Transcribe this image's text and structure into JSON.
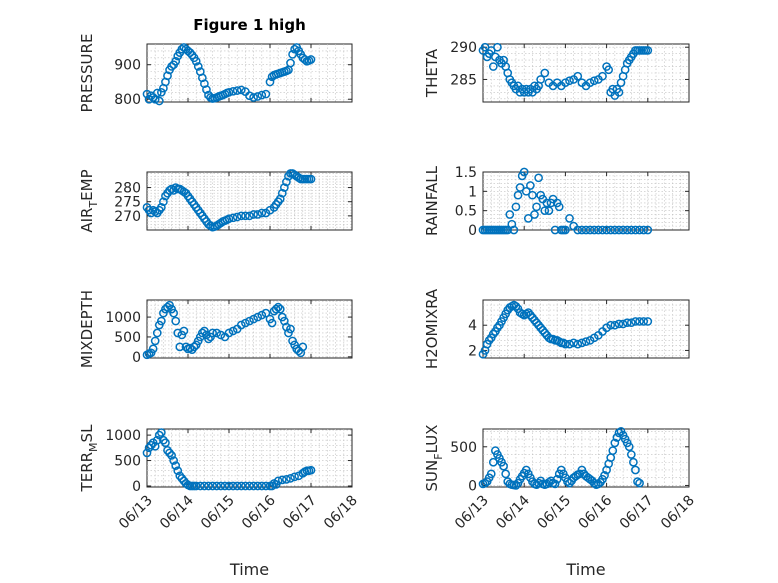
{
  "figure": {
    "title": "Figure 1 high"
  },
  "chart_data": [
    {
      "id": "pressure",
      "type": "scatter",
      "title": "Figure 1 high",
      "ylabel": "PRESSURE",
      "xlabel": "",
      "ylim": [
        792,
        960
      ],
      "yticks": [
        800,
        900
      ],
      "xlim": [
        0,
        5
      ],
      "xticks": [
        0,
        1,
        2,
        3,
        4,
        5
      ],
      "xtick_labels": [],
      "color": "#0072bd",
      "x": [
        0,
        0.05,
        0.1,
        0.15,
        0.2,
        0.25,
        0.3,
        0.35,
        0.4,
        0.45,
        0.5,
        0.55,
        0.6,
        0.65,
        0.7,
        0.75,
        0.8,
        0.85,
        0.9,
        0.95,
        1.0,
        1.05,
        1.1,
        1.15,
        1.2,
        1.25,
        1.3,
        1.35,
        1.4,
        1.45,
        1.5,
        1.55,
        1.6,
        1.65,
        1.7,
        1.75,
        1.8,
        1.85,
        1.9,
        1.95,
        2.0,
        2.1,
        2.2,
        2.3,
        2.4,
        2.5,
        2.6,
        2.7,
        2.8,
        2.9,
        3.0,
        3.05,
        3.1,
        3.15,
        3.2,
        3.25,
        3.3,
        3.35,
        3.4,
        3.45,
        3.5,
        3.55,
        3.6,
        3.65,
        3.7,
        3.75,
        3.8,
        3.85,
        3.9,
        3.95,
        4.0
      ],
      "y": [
        815,
        800,
        810,
        805,
        800,
        818,
        795,
        820,
        832,
        850,
        868,
        885,
        895,
        900,
        910,
        925,
        935,
        945,
        950,
        945,
        940,
        935,
        928,
        920,
        910,
        895,
        880,
        862,
        845,
        828,
        812,
        805,
        802,
        803,
        805,
        808,
        810,
        812,
        815,
        818,
        820,
        823,
        825,
        827,
        822,
        810,
        805,
        808,
        812,
        815,
        850,
        865,
        870,
        872,
        874,
        876,
        878,
        880,
        882,
        885,
        905,
        930,
        945,
        950,
        940,
        930,
        920,
        915,
        910,
        912,
        915
      ]
    },
    {
      "id": "theta",
      "type": "scatter",
      "title": "",
      "ylabel": "THETA",
      "xlabel": "",
      "ylim": [
        281.5,
        290.5
      ],
      "yticks": [
        285,
        290
      ],
      "xlim": [
        0,
        5
      ],
      "xticks": [
        0,
        1,
        2,
        3,
        4,
        5
      ],
      "xtick_labels": [],
      "color": "#0072bd",
      "x": [
        0,
        0.05,
        0.1,
        0.15,
        0.2,
        0.25,
        0.3,
        0.35,
        0.4,
        0.45,
        0.5,
        0.55,
        0.6,
        0.65,
        0.7,
        0.75,
        0.8,
        0.85,
        0.9,
        0.95,
        1.0,
        1.05,
        1.1,
        1.15,
        1.2,
        1.25,
        1.3,
        1.35,
        1.4,
        1.5,
        1.6,
        1.7,
        1.8,
        1.9,
        2.0,
        2.1,
        2.2,
        2.3,
        2.4,
        2.5,
        2.6,
        2.7,
        2.8,
        2.9,
        3.0,
        3.05,
        3.1,
        3.15,
        3.2,
        3.25,
        3.3,
        3.35,
        3.4,
        3.45,
        3.5,
        3.55,
        3.6,
        3.65,
        3.7,
        3.75,
        3.8,
        3.85,
        3.9,
        3.95,
        4.0
      ],
      "y": [
        289.5,
        290,
        288.5,
        289,
        289.5,
        287,
        288.5,
        290,
        288,
        287.5,
        288,
        287,
        286,
        285,
        284.5,
        284,
        283.5,
        284,
        283,
        283.5,
        283,
        283.5,
        283,
        283.5,
        283,
        284,
        283.5,
        284,
        285,
        286,
        284.5,
        284,
        284.5,
        284,
        284.5,
        284.8,
        285,
        285.5,
        284.5,
        284,
        284.5,
        284.8,
        285,
        285.5,
        287,
        286.5,
        283,
        283.5,
        282.5,
        283.5,
        283,
        284.5,
        285.5,
        286.5,
        287.5,
        288,
        288.5,
        289,
        289.5,
        289.5,
        289.5,
        289.5,
        289.5,
        289.5,
        289.5
      ]
    },
    {
      "id": "air_temp",
      "type": "scatter",
      "title": "",
      "ylabel": "AIR_TEMP",
      "xlabel": "",
      "ylim": [
        265,
        285.5
      ],
      "yticks": [
        270,
        275,
        280
      ],
      "xlim": [
        0,
        5
      ],
      "xticks": [
        0,
        1,
        2,
        3,
        4,
        5
      ],
      "xtick_labels": [],
      "color": "#0072bd",
      "x": [
        0,
        0.05,
        0.1,
        0.15,
        0.2,
        0.25,
        0.3,
        0.35,
        0.4,
        0.45,
        0.5,
        0.55,
        0.6,
        0.65,
        0.7,
        0.75,
        0.8,
        0.85,
        0.9,
        0.95,
        1.0,
        1.05,
        1.1,
        1.15,
        1.2,
        1.25,
        1.3,
        1.35,
        1.4,
        1.45,
        1.5,
        1.55,
        1.6,
        1.65,
        1.7,
        1.75,
        1.8,
        1.85,
        1.9,
        1.95,
        2.0,
        2.1,
        2.2,
        2.3,
        2.4,
        2.5,
        2.6,
        2.7,
        2.8,
        2.9,
        3.0,
        3.1,
        3.15,
        3.2,
        3.25,
        3.3,
        3.35,
        3.4,
        3.45,
        3.5,
        3.55,
        3.6,
        3.65,
        3.7,
        3.75,
        3.8,
        3.85,
        3.9,
        3.95,
        4.0
      ],
      "y": [
        273,
        272,
        271,
        272,
        271.5,
        271,
        272,
        273,
        275,
        277,
        278,
        279,
        279.5,
        279,
        280,
        279.5,
        279.5,
        279,
        278.5,
        278,
        277,
        276,
        275,
        274,
        273,
        272,
        271,
        270,
        269,
        268,
        267,
        266.5,
        266,
        266.2,
        266.5,
        267,
        267.5,
        268,
        268.3,
        268.6,
        269,
        269.3,
        269.6,
        270,
        270,
        270,
        270.5,
        270.5,
        271,
        271,
        272,
        273,
        274,
        275,
        276,
        278,
        280,
        282,
        284,
        285,
        285,
        284.5,
        284,
        283.5,
        283,
        283,
        283,
        283,
        283,
        283
      ]
    },
    {
      "id": "rainfall",
      "type": "scatter",
      "title": "",
      "ylabel": "RAINFALL",
      "xlabel": "",
      "ylim": [
        0,
        1.5
      ],
      "yticks": [
        0,
        0.5,
        1,
        1.5
      ],
      "xlim": [
        0,
        5
      ],
      "xticks": [
        0,
        1,
        2,
        3,
        4,
        5
      ],
      "xtick_labels": [],
      "color": "#0072bd",
      "x": [
        0,
        0.05,
        0.1,
        0.15,
        0.2,
        0.25,
        0.3,
        0.35,
        0.4,
        0.45,
        0.5,
        0.55,
        0.6,
        0.65,
        0.7,
        0.75,
        0.8,
        0.85,
        0.9,
        0.95,
        1.0,
        1.05,
        1.1,
        1.15,
        1.2,
        1.25,
        1.3,
        1.35,
        1.4,
        1.45,
        1.5,
        1.55,
        1.6,
        1.65,
        1.7,
        1.75,
        1.8,
        1.85,
        1.9,
        1.95,
        2.0,
        2.1,
        2.2,
        2.3,
        2.4,
        2.5,
        2.6,
        2.7,
        2.8,
        2.9,
        3.0,
        3.1,
        3.2,
        3.3,
        3.4,
        3.5,
        3.6,
        3.7,
        3.8,
        3.9,
        4.0
      ],
      "y": [
        0,
        0,
        0,
        0,
        0,
        0,
        0,
        0,
        0,
        0,
        0,
        0,
        0,
        0.4,
        0.15,
        0,
        0.6,
        0.9,
        1.1,
        1.4,
        1.5,
        1.0,
        0.3,
        1.15,
        0.9,
        0.4,
        0.6,
        1.35,
        0.9,
        0.8,
        0.5,
        0.7,
        0.5,
        0.7,
        0.8,
        0,
        0.7,
        0.6,
        0,
        0,
        0,
        0.3,
        0.1,
        0,
        0,
        0,
        0,
        0,
        0,
        0,
        0,
        0,
        0,
        0,
        0,
        0,
        0,
        0,
        0,
        0,
        0
      ]
    },
    {
      "id": "mixdepth",
      "type": "scatter",
      "title": "",
      "ylabel": "MIXDEPTH",
      "xlabel": "",
      "ylim": [
        -30,
        1430
      ],
      "yticks": [
        0,
        500,
        1000
      ],
      "xlim": [
        0,
        5
      ],
      "xticks": [
        0,
        1,
        2,
        3,
        4,
        5
      ],
      "xtick_labels": [],
      "color": "#0072bd",
      "x": [
        0,
        0.05,
        0.1,
        0.15,
        0.2,
        0.25,
        0.3,
        0.35,
        0.4,
        0.45,
        0.5,
        0.55,
        0.6,
        0.65,
        0.7,
        0.75,
        0.8,
        0.85,
        0.9,
        0.95,
        1.0,
        1.05,
        1.1,
        1.15,
        1.2,
        1.25,
        1.3,
        1.35,
        1.4,
        1.45,
        1.5,
        1.55,
        1.6,
        1.7,
        1.8,
        1.9,
        2.0,
        2.1,
        2.2,
        2.3,
        2.4,
        2.5,
        2.6,
        2.7,
        2.8,
        2.9,
        3.0,
        3.05,
        3.1,
        3.15,
        3.2,
        3.25,
        3.3,
        3.35,
        3.4,
        3.45,
        3.5,
        3.55,
        3.6,
        3.65,
        3.7,
        3.75,
        3.8
      ],
      "y": [
        50,
        80,
        100,
        200,
        400,
        600,
        800,
        900,
        1100,
        1200,
        1250,
        1300,
        1200,
        1100,
        900,
        600,
        250,
        550,
        650,
        250,
        200,
        220,
        180,
        250,
        300,
        400,
        500,
        600,
        650,
        550,
        450,
        500,
        600,
        600,
        550,
        500,
        600,
        650,
        700,
        800,
        850,
        900,
        950,
        1000,
        1050,
        1100,
        950,
        850,
        1150,
        1200,
        1250,
        1200,
        1000,
        900,
        750,
        600,
        700,
        400,
        300,
        200,
        150,
        100,
        250
      ]
    },
    {
      "id": "h2omixra",
      "type": "scatter",
      "title": "",
      "ylabel": "H2OMIXRA",
      "xlabel": "",
      "ylim": [
        1.4,
        6
      ],
      "yticks": [
        2,
        4
      ],
      "xlim": [
        0,
        5
      ],
      "xticks": [
        0,
        1,
        2,
        3,
        4,
        5
      ],
      "xtick_labels": [],
      "color": "#0072bd",
      "x": [
        0,
        0.05,
        0.1,
        0.15,
        0.2,
        0.25,
        0.3,
        0.35,
        0.4,
        0.45,
        0.5,
        0.55,
        0.6,
        0.65,
        0.7,
        0.75,
        0.8,
        0.85,
        0.9,
        0.95,
        1.0,
        1.05,
        1.1,
        1.15,
        1.2,
        1.25,
        1.3,
        1.35,
        1.4,
        1.45,
        1.5,
        1.55,
        1.6,
        1.65,
        1.7,
        1.75,
        1.8,
        1.85,
        1.9,
        1.95,
        2.0,
        2.1,
        2.2,
        2.3,
        2.4,
        2.5,
        2.6,
        2.7,
        2.8,
        2.9,
        3.0,
        3.1,
        3.2,
        3.3,
        3.4,
        3.5,
        3.6,
        3.7,
        3.8,
        3.9,
        4.0
      ],
      "y": [
        1.7,
        2.0,
        2.5,
        2.8,
        3.0,
        3.3,
        3.5,
        3.8,
        4.0,
        4.3,
        4.6,
        4.9,
        5.2,
        5.4,
        5.5,
        5.6,
        5.5,
        5.3,
        5.0,
        4.9,
        4.8,
        4.9,
        5.0,
        4.8,
        4.6,
        4.4,
        4.2,
        4.0,
        3.8,
        3.6,
        3.4,
        3.2,
        3.0,
        2.9,
        2.9,
        2.8,
        2.8,
        2.7,
        2.6,
        2.6,
        2.5,
        2.5,
        2.6,
        2.5,
        2.6,
        2.7,
        2.8,
        3.0,
        3.2,
        3.5,
        3.8,
        4.0,
        4.0,
        4.1,
        4.1,
        4.2,
        4.2,
        4.3,
        4.3,
        4.3,
        4.3
      ]
    },
    {
      "id": "terr_msl",
      "type": "scatter",
      "title": "",
      "ylabel": "TERR_MSL",
      "xlabel": "Time",
      "ylim": [
        -20,
        1120
      ],
      "yticks": [
        0,
        500,
        1000
      ],
      "xlim": [
        0,
        5
      ],
      "xticks": [
        0,
        1,
        2,
        3,
        4,
        5
      ],
      "xtick_labels": [
        "06/13",
        "06/14",
        "06/15",
        "06/16",
        "06/17",
        "06/18"
      ],
      "color": "#0072bd",
      "x": [
        0,
        0.05,
        0.1,
        0.15,
        0.2,
        0.25,
        0.3,
        0.35,
        0.4,
        0.45,
        0.5,
        0.55,
        0.6,
        0.65,
        0.7,
        0.75,
        0.8,
        0.85,
        0.9,
        0.95,
        1.0,
        1.05,
        1.1,
        1.15,
        1.2,
        1.3,
        1.4,
        1.5,
        1.6,
        1.7,
        1.8,
        1.9,
        2.0,
        2.1,
        2.2,
        2.3,
        2.4,
        2.5,
        2.6,
        2.7,
        2.8,
        2.9,
        3.0,
        3.05,
        3.1,
        3.15,
        3.2,
        3.3,
        3.4,
        3.5,
        3.6,
        3.7,
        3.8,
        3.85,
        3.9,
        3.95,
        4.0
      ],
      "y": [
        650,
        750,
        800,
        850,
        780,
        900,
        1000,
        1050,
        900,
        850,
        700,
        650,
        600,
        500,
        400,
        300,
        200,
        150,
        100,
        50,
        20,
        0,
        0,
        0,
        0,
        0,
        0,
        0,
        0,
        0,
        0,
        0,
        0,
        0,
        0,
        0,
        0,
        0,
        0,
        0,
        0,
        0,
        0,
        0,
        50,
        30,
        100,
        120,
        130,
        150,
        180,
        200,
        250,
        280,
        300,
        300,
        310
      ]
    },
    {
      "id": "sun_flux",
      "type": "scatter",
      "title": "",
      "ylabel": "SUN_FLUX",
      "xlabel": "Time",
      "ylim": [
        -20,
        730
      ],
      "yticks": [
        0,
        500
      ],
      "xlim": [
        0,
        5
      ],
      "xticks": [
        0,
        1,
        2,
        3,
        4,
        5
      ],
      "xtick_labels": [
        "06/13",
        "06/14",
        "06/15",
        "06/16",
        "06/17",
        "06/18"
      ],
      "color": "#0072bd",
      "x": [
        0,
        0.05,
        0.1,
        0.15,
        0.2,
        0.25,
        0.3,
        0.35,
        0.4,
        0.45,
        0.5,
        0.55,
        0.6,
        0.65,
        0.7,
        0.75,
        0.8,
        0.85,
        0.9,
        0.95,
        1.0,
        1.05,
        1.1,
        1.15,
        1.2,
        1.25,
        1.3,
        1.35,
        1.4,
        1.45,
        1.5,
        1.55,
        1.6,
        1.65,
        1.7,
        1.75,
        1.8,
        1.85,
        1.9,
        1.95,
        2.0,
        2.05,
        2.1,
        2.15,
        2.2,
        2.25,
        2.3,
        2.35,
        2.4,
        2.45,
        2.5,
        2.55,
        2.6,
        2.65,
        2.7,
        2.75,
        2.8,
        2.85,
        2.9,
        2.95,
        3.0,
        3.05,
        3.1,
        3.15,
        3.2,
        3.25,
        3.3,
        3.35,
        3.4,
        3.45,
        3.5,
        3.55,
        3.6,
        3.65,
        3.7,
        3.75,
        3.8
      ],
      "y": [
        20,
        30,
        50,
        100,
        150,
        300,
        450,
        400,
        350,
        300,
        250,
        150,
        50,
        20,
        10,
        5,
        0,
        30,
        80,
        120,
        160,
        200,
        150,
        100,
        50,
        20,
        10,
        30,
        60,
        20,
        10,
        20,
        40,
        60,
        30,
        20,
        80,
        150,
        200,
        150,
        100,
        50,
        30,
        60,
        100,
        120,
        140,
        150,
        200,
        150,
        120,
        100,
        80,
        60,
        30,
        10,
        20,
        40,
        80,
        130,
        200,
        280,
        360,
        450,
        550,
        620,
        680,
        700,
        650,
        600,
        550,
        500,
        400,
        300,
        200,
        50,
        30
      ]
    }
  ]
}
